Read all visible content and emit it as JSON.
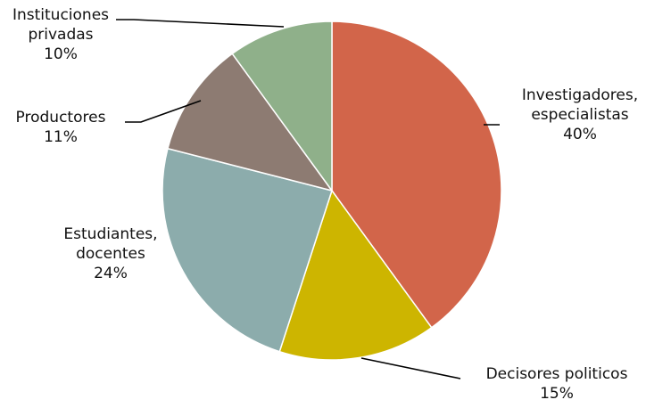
{
  "chart_data": {
    "type": "pie",
    "title": "",
    "slices": [
      {
        "label_lines": [
          "Investigadores,",
          "especialistas"
        ],
        "value": 40,
        "value_label": "40%",
        "color": "#D2654A"
      },
      {
        "label_lines": [
          "Decisores politicos"
        ],
        "value": 15,
        "value_label": "15%",
        "color": "#CDB500"
      },
      {
        "label_lines": [
          "Estudiantes,",
          "docentes"
        ],
        "value": 24,
        "value_label": "24%",
        "color": "#8CACAC"
      },
      {
        "label_lines": [
          "Productores"
        ],
        "value": 11,
        "value_label": "11%",
        "color": "#8D7B72"
      },
      {
        "label_lines": [
          "Instituciones",
          "privadas"
        ],
        "value": 10,
        "value_label": "10%",
        "color": "#8FB08A"
      }
    ],
    "start_angle": "12 o'clock",
    "direction": "clockwise",
    "legend": "none",
    "labels": "outside with leader lines"
  }
}
